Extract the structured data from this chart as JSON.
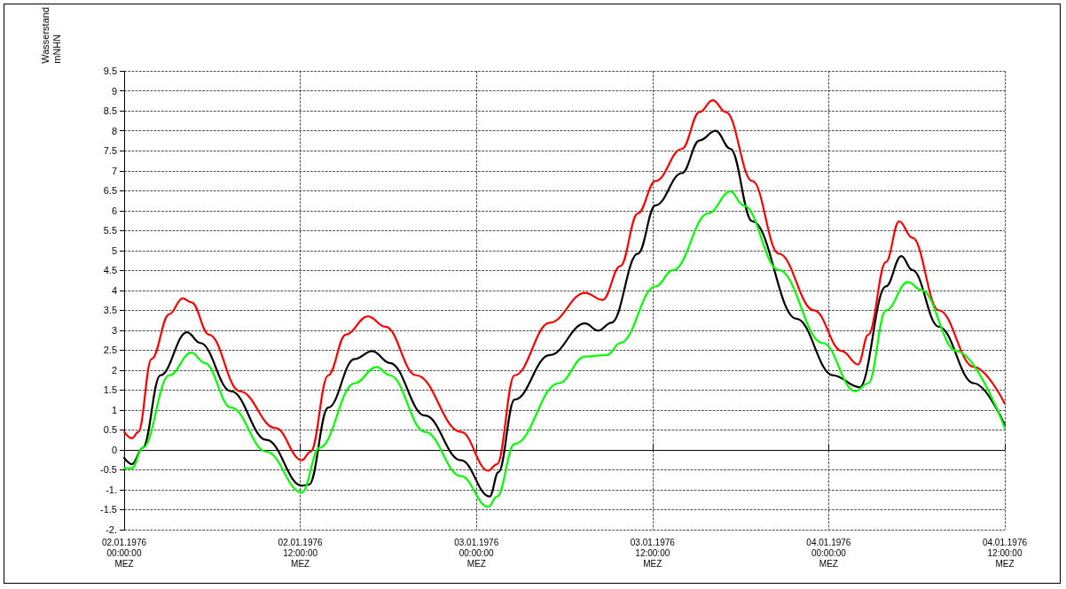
{
  "chart_data": {
    "type": "line",
    "ylabel": "Wasserstand\nmNHN",
    "xlim": [
      "1976-01-02T00:00",
      "1976-01-04T12:00"
    ],
    "xticks": [
      {
        "value": "1976-01-02T00:00",
        "label": "02.01.1976\n00:00:00\nMEZ"
      },
      {
        "value": "1976-01-02T12:00",
        "label": "02.01.1976\n12:00:00\nMEZ"
      },
      {
        "value": "1976-01-03T00:00",
        "label": "03.01.1976\n00:00:00\nMEZ"
      },
      {
        "value": "1976-01-03T12:00",
        "label": "03.01.1976\n12:00:00\nMEZ"
      },
      {
        "value": "1976-01-04T00:00",
        "label": "04.01.1976\n00:00:00\nMEZ"
      },
      {
        "value": "1976-01-04T12:00",
        "label": "04.01.1976\n12:00:00\nMEZ"
      }
    ],
    "ylim": [
      -2,
      9.5
    ],
    "yticks": [
      {
        "value": -2,
        "label": "-2."
      },
      -1.5,
      {
        "value": -1,
        "label": "-1."
      },
      -0.5,
      0,
      0.5,
      1,
      1.5,
      2,
      2.5,
      3,
      3.5,
      4,
      4.5,
      5,
      5.5,
      6,
      6.5,
      7,
      7.5,
      8,
      8.5,
      9,
      9.5
    ],
    "grid": true,
    "marker": "none",
    "line_style": "solid",
    "series": [
      {
        "color": "#ff0000",
        "x": [
          "1976-01-02T00:00",
          "1976-01-02T00:32",
          "1976-01-02T00:58",
          "1976-01-02T01:52",
          "1976-01-02T03:04",
          "1976-01-02T03:59",
          "1976-01-02T04:35",
          "1976-01-02T05:47",
          "1976-01-02T07:53",
          "1976-01-02T10:18",
          "1976-01-02T12:06",
          "1976-01-02T12:42",
          "1976-01-02T13:54",
          "1976-01-02T15:06",
          "1976-01-02T16:36",
          "1976-01-02T17:48",
          "1976-01-02T19:54",
          "1976-01-02T22:57",
          "1976-01-03T00:48",
          "1976-01-03T01:24",
          "1976-01-03T02:36",
          "1976-01-03T05:00",
          "1976-01-03T07:24",
          "1976-01-03T08:36",
          "1976-01-03T09:48",
          "1976-01-03T11:00",
          "1976-01-03T12:12",
          "1976-01-03T14:00",
          "1976-01-03T15:12",
          "1976-01-03T16:06",
          "1976-01-03T17:00",
          "1976-01-03T18:48",
          "1976-01-03T20:36",
          "1976-01-03T23:00",
          "1976-01-04T00:54",
          "1976-01-04T02:00",
          "1976-01-04T02:42",
          "1976-01-04T03:54",
          "1976-01-04T04:48",
          "1976-01-04T05:42",
          "1976-01-04T07:30",
          "1976-01-04T09:54",
          "1976-01-04T12:00"
        ],
        "values": [
          0.45,
          0.29,
          0.45,
          2.28,
          3.4,
          3.8,
          3.7,
          2.89,
          1.47,
          0.55,
          -0.26,
          -0.05,
          1.87,
          2.89,
          3.35,
          3.09,
          1.87,
          0.45,
          -0.52,
          -0.36,
          1.87,
          3.19,
          3.94,
          3.76,
          4.61,
          5.93,
          6.74,
          7.55,
          8.47,
          8.77,
          8.47,
          6.74,
          4.92,
          3.5,
          2.48,
          2.14,
          2.89,
          4.71,
          5.73,
          5.32,
          3.5,
          2.08,
          1.16
        ]
      },
      {
        "color": "#000000",
        "x": [
          "1976-01-02T00:00",
          "1976-01-02T00:32",
          "1976-01-02T01:16",
          "1976-01-02T02:28",
          "1976-01-02T04:17",
          "1976-01-02T05:11",
          "1976-01-02T07:17",
          "1976-01-02T09:42",
          "1976-01-02T12:06",
          "1976-01-02T12:36",
          "1976-01-02T13:54",
          "1976-01-02T15:42",
          "1976-01-02T16:54",
          "1976-01-02T18:06",
          "1976-01-02T20:30",
          "1976-01-02T22:57",
          "1976-01-03T00:54",
          "1976-01-03T01:30",
          "1976-01-03T02:36",
          "1976-01-03T05:00",
          "1976-01-03T07:24",
          "1976-01-03T08:18",
          "1976-01-03T09:12",
          "1976-01-03T11:00",
          "1976-01-03T12:12",
          "1976-01-03T14:00",
          "1976-01-03T15:12",
          "1976-01-03T16:18",
          "1976-01-03T17:18",
          "1976-01-03T18:48",
          "1976-01-03T21:48",
          "1976-01-04T00:18",
          "1976-01-04T02:06",
          "1976-01-04T03:54",
          "1976-01-04T04:57",
          "1976-01-04T05:42",
          "1976-01-04T07:30",
          "1976-01-04T09:54",
          "1976-01-04T12:00"
        ],
        "values": [
          -0.2,
          -0.36,
          0.05,
          1.87,
          2.95,
          2.68,
          1.47,
          0.25,
          -0.9,
          -0.87,
          1.06,
          2.28,
          2.48,
          2.18,
          0.86,
          -0.26,
          -1.17,
          -0.56,
          1.26,
          2.38,
          3.17,
          2.99,
          3.19,
          4.92,
          6.13,
          6.94,
          7.76,
          8,
          7.55,
          5.73,
          3.29,
          1.87,
          1.57,
          4.1,
          4.86,
          4.51,
          3.09,
          1.67,
          0.62
        ]
      },
      {
        "color": "#00ff00",
        "x": [
          "1976-01-02T00:00",
          "1976-01-02T00:32",
          "1976-01-02T01:16",
          "1976-01-02T03:04",
          "1976-01-02T04:35",
          "1976-01-02T05:29",
          "1976-01-02T07:17",
          "1976-01-02T09:42",
          "1976-01-02T12:06",
          "1976-01-02T13:18",
          "1976-01-02T15:42",
          "1976-01-02T17:12",
          "1976-01-02T18:06",
          "1976-01-02T20:30",
          "1976-01-02T22:57",
          "1976-01-03T00:48",
          "1976-01-03T01:24",
          "1976-01-03T02:36",
          "1976-01-03T05:36",
          "1976-01-03T07:24",
          "1976-01-03T08:54",
          "1976-01-03T09:48",
          "1976-01-03T12:12",
          "1976-01-03T13:24",
          "1976-01-03T15:48",
          "1976-01-03T17:18",
          "1976-01-03T18:12",
          "1976-01-03T20:36",
          "1976-01-03T23:36",
          "1976-01-04T01:48",
          "1976-01-04T02:42",
          "1976-01-04T03:54",
          "1976-01-04T05:24",
          "1976-01-04T06:18",
          "1976-01-04T08:42",
          "1976-01-04T12:00"
        ],
        "values": [
          -0.46,
          -0.46,
          0.05,
          1.87,
          2.44,
          2.18,
          1.06,
          -0.05,
          -1.07,
          0.05,
          1.67,
          2.08,
          1.87,
          0.45,
          -0.66,
          -1.43,
          -1.17,
          0.15,
          1.67,
          2.34,
          2.38,
          2.68,
          4.1,
          4.51,
          5.93,
          6.48,
          6.13,
          4.51,
          2.68,
          1.47,
          1.67,
          3.5,
          4.21,
          4.01,
          2.48,
          0.55
        ]
      }
    ]
  }
}
